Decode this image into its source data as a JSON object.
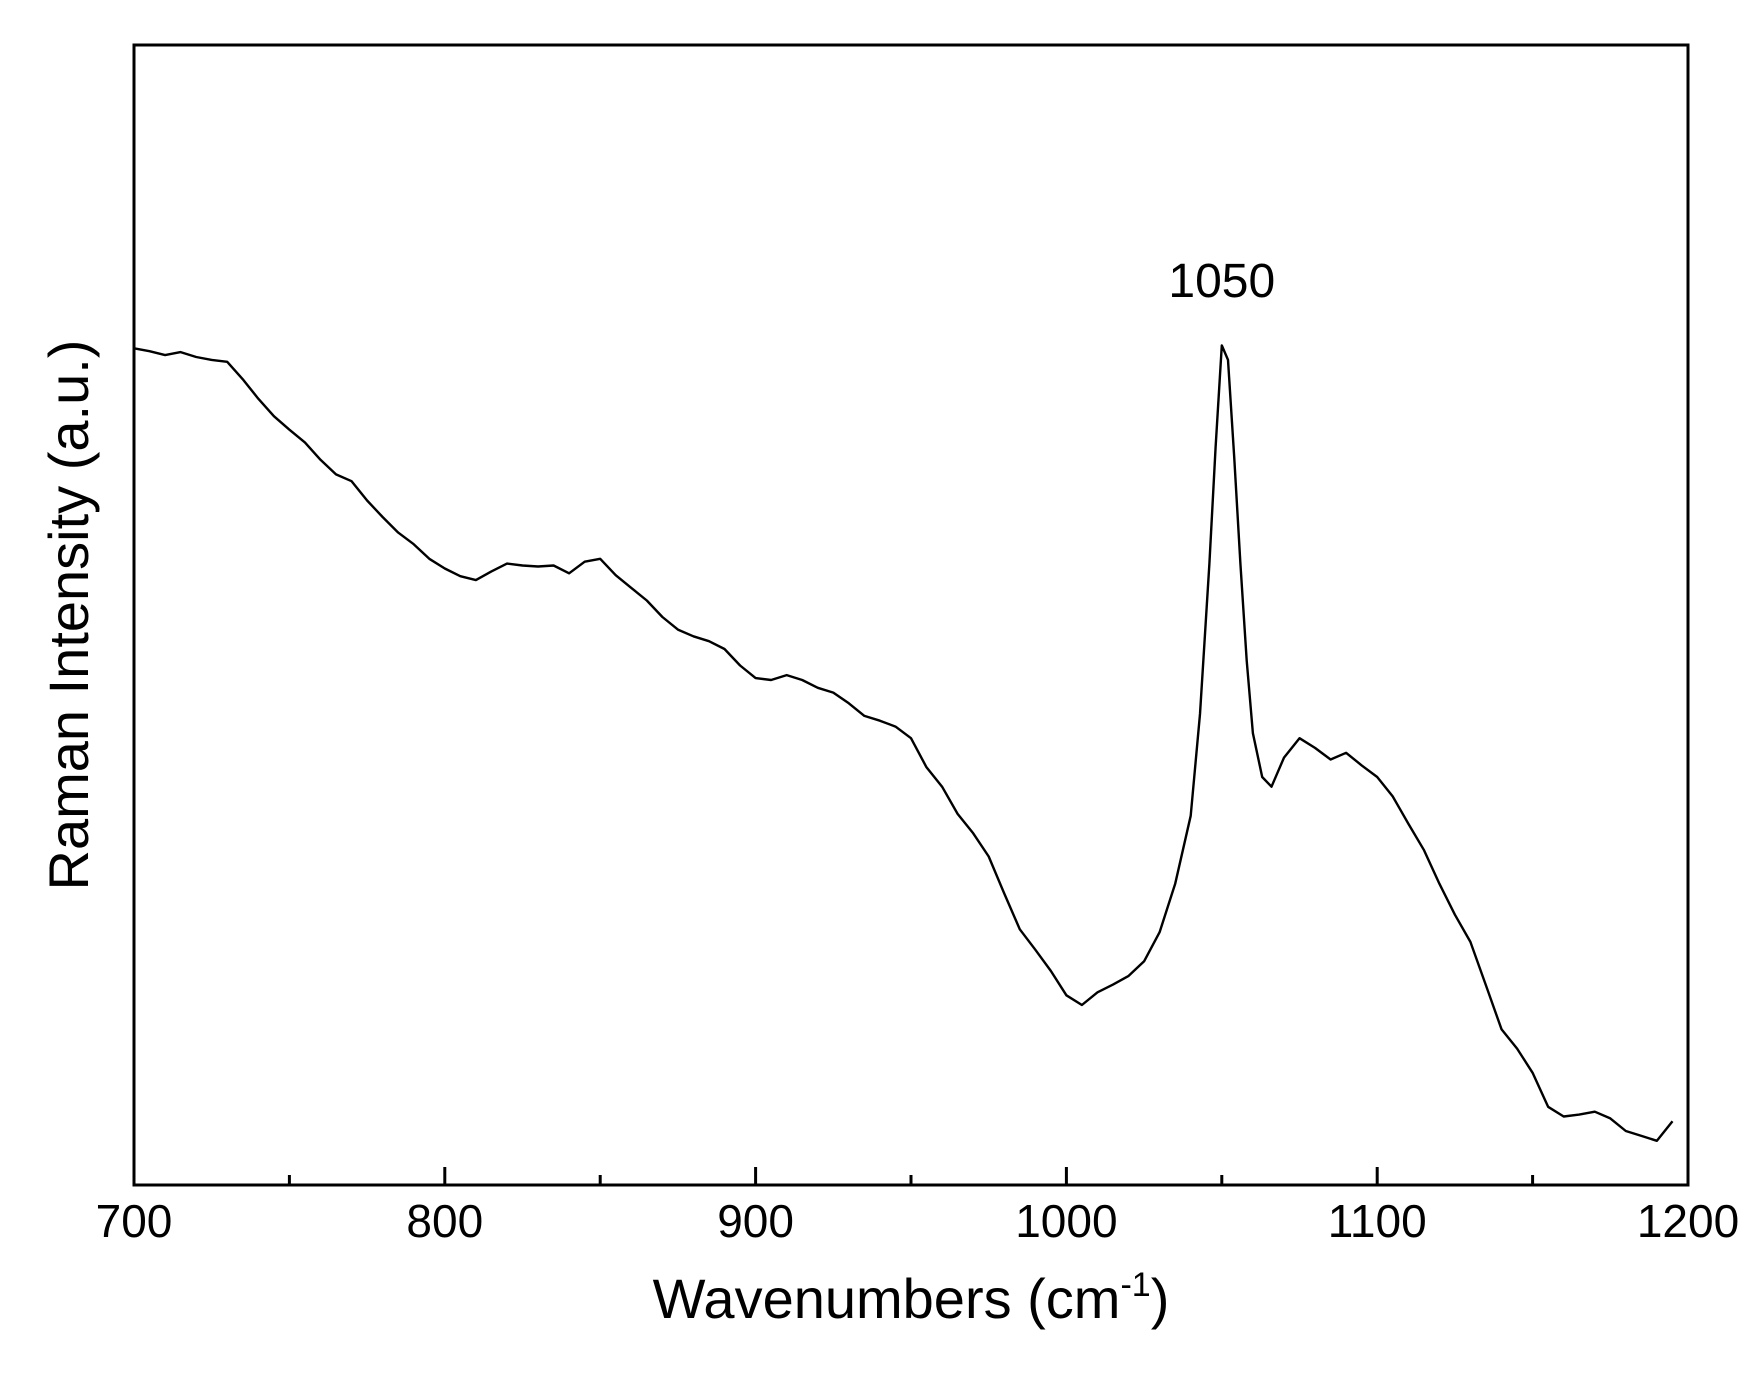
{
  "chart_data": {
    "type": "line",
    "title": "",
    "xlabel": "Wavenumbers (cm",
    "xlabel_sup": "-1",
    "xlabel_close": ")",
    "ylabel": "Raman Intensity (a.u.)",
    "xlim": [
      700,
      1200
    ],
    "ylim": [
      0,
      1
    ],
    "x_ticks": [
      700,
      800,
      900,
      1000,
      1100,
      1200
    ],
    "x_tick_labels": [
      "700",
      "800",
      "900",
      "1000",
      "1100",
      "1200"
    ],
    "x_minor_ticks": [
      750,
      850,
      950,
      1050,
      1150
    ],
    "y_tick_labels_shown": false,
    "grid": false,
    "line_color": "#000000",
    "annotations": [
      {
        "text": "1050",
        "x": 1050,
        "y": 0.862
      }
    ],
    "series": [
      {
        "x": [
          700,
          705,
          710,
          715,
          720,
          725,
          730,
          735,
          740,
          745,
          750,
          755,
          760,
          765,
          770,
          775,
          780,
          785,
          790,
          795,
          800,
          805,
          810,
          815,
          820,
          825,
          830,
          835,
          840,
          845,
          850,
          855,
          860,
          865,
          870,
          875,
          880,
          885,
          890,
          895,
          900,
          905,
          910,
          915,
          920,
          925,
          930,
          935,
          940,
          945,
          950,
          955,
          960,
          965,
          970,
          975,
          980,
          985,
          990,
          995,
          1000,
          1005,
          1010,
          1015,
          1020,
          1025,
          1030,
          1035,
          1040,
          1043,
          1046,
          1048,
          1050,
          1052,
          1054,
          1056,
          1058,
          1060,
          1063,
          1066,
          1070,
          1075,
          1080,
          1085,
          1090,
          1095,
          1100,
          1105,
          1110,
          1115,
          1120,
          1125,
          1130,
          1135,
          1140,
          1145,
          1150,
          1155,
          1160,
          1165,
          1170,
          1175,
          1180,
          1185,
          1190,
          1195
        ],
        "y": [
          0.842,
          0.839,
          0.835,
          0.838,
          0.833,
          0.83,
          0.828,
          0.81,
          0.79,
          0.772,
          0.758,
          0.745,
          0.727,
          0.712,
          0.705,
          0.685,
          0.668,
          0.652,
          0.64,
          0.625,
          0.615,
          0.607,
          0.603,
          0.612,
          0.62,
          0.618,
          0.617,
          0.618,
          0.61,
          0.622,
          0.625,
          0.608,
          0.595,
          0.582,
          0.565,
          0.552,
          0.545,
          0.54,
          0.532,
          0.515,
          0.502,
          0.5,
          0.505,
          0.5,
          0.492,
          0.487,
          0.476,
          0.463,
          0.458,
          0.452,
          0.44,
          0.41,
          0.39,
          0.362,
          0.342,
          0.318,
          0.28,
          0.243,
          0.222,
          0.2,
          0.175,
          0.165,
          0.178,
          0.186,
          0.195,
          0.21,
          0.24,
          0.29,
          0.36,
          0.465,
          0.62,
          0.74,
          0.845,
          0.83,
          0.73,
          0.62,
          0.52,
          0.445,
          0.4,
          0.39,
          0.42,
          0.44,
          0.43,
          0.418,
          0.425,
          0.412,
          0.4,
          0.38,
          0.352,
          0.325,
          0.29,
          0.258,
          0.23,
          0.185,
          0.14,
          0.12,
          0.095,
          0.06,
          0.05,
          0.052,
          0.055,
          0.048,
          0.035,
          0.03,
          0.025,
          0.045
        ]
      }
    ]
  }
}
